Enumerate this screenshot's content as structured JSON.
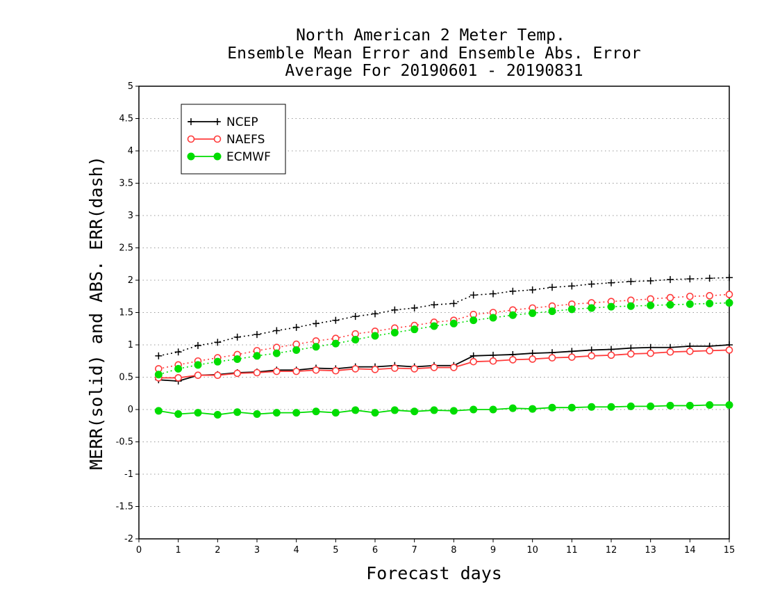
{
  "chart_data": {
    "type": "line",
    "title": [
      "North American 2 Meter Temp.",
      "Ensemble Mean Error and Ensemble Abs. Error",
      "Average For 20190601 - 20190831"
    ],
    "xlabel": "Forecast days",
    "ylabel": "MERR(solid) and ABS. ERR(dash)",
    "xlim": [
      0,
      15
    ],
    "ylim": [
      -2,
      5
    ],
    "xticks": [
      "0",
      "1",
      "2",
      "3",
      "4",
      "5",
      "6",
      "7",
      "8",
      "9",
      "10",
      "11",
      "12",
      "13",
      "14",
      "15"
    ],
    "yticks": [
      "-2",
      "-1.5",
      "-1",
      "-0.5",
      "0",
      "0.5",
      "1",
      "1.5",
      "2",
      "2.5",
      "3",
      "3.5",
      "4",
      "4.5",
      "5"
    ],
    "grid": "horizontal dotted",
    "legend_position": "top-left",
    "x": [
      0.5,
      1,
      1.5,
      2,
      2.5,
      3,
      3.5,
      4,
      4.5,
      5,
      5.5,
      6,
      6.5,
      7,
      7.5,
      8,
      8.5,
      9,
      9.5,
      10,
      10.5,
      11,
      11.5,
      12,
      12.5,
      13,
      13.5,
      14,
      14.5,
      15
    ],
    "series": [
      {
        "name": "NCEP",
        "color": "#000000",
        "marker": "plus",
        "merr": [
          0.46,
          0.44,
          0.53,
          0.54,
          0.57,
          0.58,
          0.61,
          0.61,
          0.64,
          0.63,
          0.66,
          0.66,
          0.68,
          0.66,
          0.68,
          0.68,
          0.83,
          0.84,
          0.85,
          0.87,
          0.88,
          0.9,
          0.92,
          0.93,
          0.95,
          0.96,
          0.96,
          0.98,
          0.98,
          1.0
        ],
        "abs_err": [
          0.83,
          0.89,
          0.99,
          1.04,
          1.12,
          1.16,
          1.22,
          1.27,
          1.33,
          1.38,
          1.44,
          1.48,
          1.54,
          1.57,
          1.62,
          1.64,
          1.77,
          1.79,
          1.83,
          1.85,
          1.89,
          1.91,
          1.94,
          1.96,
          1.98,
          1.99,
          2.01,
          2.02,
          2.03,
          2.04
        ]
      },
      {
        "name": "NAEFS",
        "color": "#ff3b3b",
        "marker": "open-circle",
        "merr": [
          0.49,
          0.49,
          0.53,
          0.53,
          0.56,
          0.57,
          0.59,
          0.59,
          0.61,
          0.6,
          0.63,
          0.62,
          0.64,
          0.63,
          0.65,
          0.65,
          0.74,
          0.75,
          0.77,
          0.78,
          0.8,
          0.81,
          0.83,
          0.84,
          0.86,
          0.87,
          0.89,
          0.9,
          0.91,
          0.92
        ],
        "abs_err": [
          0.63,
          0.69,
          0.75,
          0.8,
          0.85,
          0.91,
          0.96,
          1.01,
          1.06,
          1.1,
          1.17,
          1.21,
          1.26,
          1.3,
          1.35,
          1.38,
          1.47,
          1.5,
          1.54,
          1.57,
          1.6,
          1.63,
          1.65,
          1.67,
          1.69,
          1.71,
          1.73,
          1.75,
          1.76,
          1.78
        ]
      },
      {
        "name": "ECMWF",
        "color": "#00dd00",
        "marker": "filled-circle",
        "merr": [
          -0.02,
          -0.07,
          -0.05,
          -0.08,
          -0.04,
          -0.07,
          -0.05,
          -0.05,
          -0.03,
          -0.05,
          -0.01,
          -0.05,
          -0.01,
          -0.03,
          -0.01,
          -0.02,
          0.0,
          0.0,
          0.02,
          0.01,
          0.03,
          0.03,
          0.04,
          0.04,
          0.05,
          0.05,
          0.06,
          0.06,
          0.07,
          0.07
        ],
        "abs_err": [
          0.54,
          0.63,
          0.69,
          0.74,
          0.78,
          0.83,
          0.87,
          0.92,
          0.97,
          1.02,
          1.08,
          1.14,
          1.19,
          1.24,
          1.29,
          1.33,
          1.38,
          1.42,
          1.46,
          1.49,
          1.52,
          1.55,
          1.57,
          1.59,
          1.6,
          1.61,
          1.62,
          1.63,
          1.64,
          1.65
        ]
      }
    ]
  }
}
